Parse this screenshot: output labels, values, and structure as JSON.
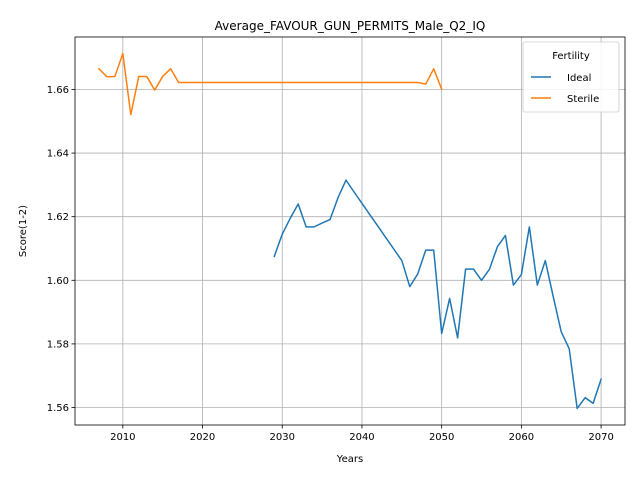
{
  "chart_data": {
    "type": "line",
    "title": "Average_FAVOUR_GUN_PERMITS_Male_Q2_IQ",
    "xlabel": "Years",
    "ylabel": "Score(1-2)",
    "xlim": [
      2004,
      2073
    ],
    "ylim": [
      1.5545,
      1.6765
    ],
    "x_ticks": [
      2010,
      2020,
      2030,
      2040,
      2050,
      2060,
      2070
    ],
    "y_ticks": [
      1.56,
      1.58,
      1.6,
      1.62,
      1.64,
      1.66
    ],
    "y_tick_labels": [
      "1.56",
      "1.58",
      "1.60",
      "1.62",
      "1.64",
      "1.66"
    ],
    "grid": true,
    "legend": {
      "title": "Fertility",
      "placement": "top-right"
    },
    "series": [
      {
        "name": "Ideal",
        "color": "#1f77b4",
        "x": [
          2029,
          2030,
          2031,
          2032,
          2033,
          2034,
          2035,
          2036,
          2037,
          2038,
          2039,
          2040,
          2041,
          2042,
          2043,
          2044,
          2045,
          2046,
          2047,
          2048,
          2049,
          2050,
          2051,
          2052,
          2053,
          2054,
          2055,
          2056,
          2057,
          2058,
          2059,
          2060,
          2061,
          2062,
          2063,
          2064,
          2065,
          2066,
          2067,
          2068,
          2069,
          2070
        ],
        "y": [
          1.6075,
          1.6145,
          1.6195,
          1.624,
          1.6168,
          1.6168,
          1.618,
          1.6191,
          1.626,
          1.6315,
          1.6278,
          1.6242,
          1.6206,
          1.617,
          1.6134,
          1.6098,
          1.6062,
          1.598,
          1.602,
          1.6095,
          1.6095,
          1.5833,
          1.5943,
          1.5819,
          1.6035,
          1.6035,
          1.6,
          1.6035,
          1.6106,
          1.6141,
          1.5985,
          1.6018,
          1.6168,
          1.5985,
          1.6062,
          1.5948,
          1.5838,
          1.5785,
          1.5597,
          1.5631,
          1.5613,
          1.5689
        ]
      },
      {
        "name": "Sterile",
        "color": "#ff7f0e",
        "x": [
          2007,
          2008,
          2009,
          2010,
          2011,
          2012,
          2013,
          2014,
          2015,
          2016,
          2017,
          2018,
          2019,
          2020,
          2025,
          2030,
          2035,
          2040,
          2045,
          2046,
          2047,
          2048,
          2049,
          2050
        ],
        "y": [
          1.6665,
          1.664,
          1.6641,
          1.6713,
          1.6521,
          1.6641,
          1.6641,
          1.6598,
          1.6641,
          1.6665,
          1.6622,
          1.6622,
          1.6622,
          1.6622,
          1.6622,
          1.6622,
          1.6622,
          1.6622,
          1.6622,
          1.6622,
          1.6622,
          1.6617,
          1.6665,
          1.6601
        ]
      }
    ]
  }
}
